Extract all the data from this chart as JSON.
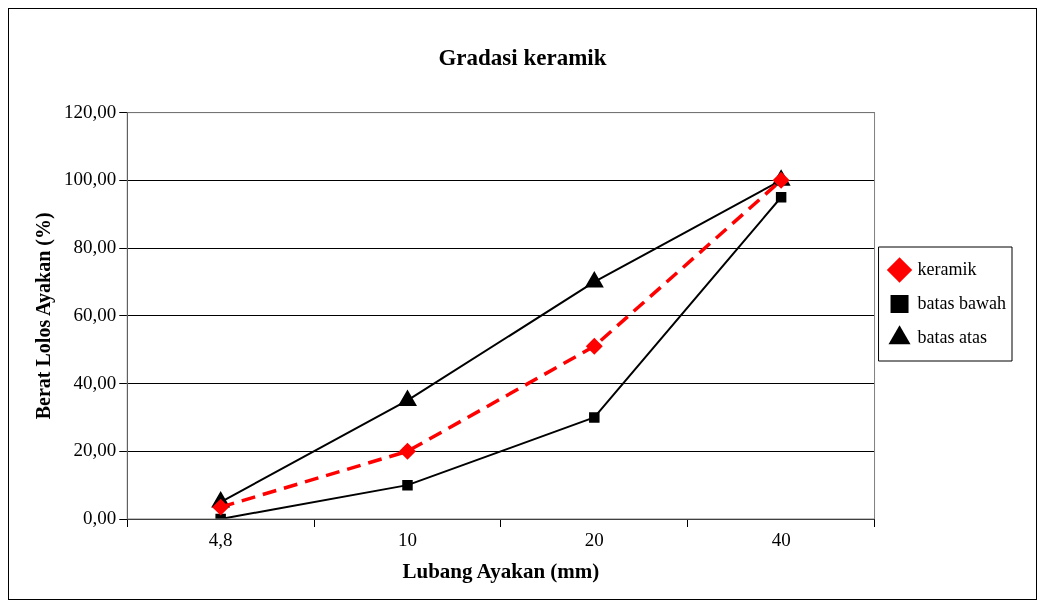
{
  "chart_data": {
    "type": "line",
    "title": "Gradasi keramik",
    "xlabel": "Lubang Ayakan (mm)",
    "ylabel": "Berat Lolos Ayakan (%)",
    "categories": [
      "4,8",
      "10",
      "20",
      "40"
    ],
    "series": [
      {
        "name": "keramik",
        "color": "#ff0000",
        "values": [
          3.5,
          20,
          51,
          100
        ],
        "marker": "diamond",
        "line_style": "dashed"
      },
      {
        "name": "batas bawah",
        "color": "#000000",
        "values": [
          0,
          10,
          30,
          95
        ],
        "marker": "square",
        "line_style": "solid"
      },
      {
        "name": "batas atas",
        "color": "#000000",
        "values": [
          5,
          35,
          70,
          100
        ],
        "marker": "triangle",
        "line_style": "solid"
      }
    ],
    "ylim": [
      0,
      120
    ],
    "yticks": [
      {
        "value": 0,
        "label": "0,00"
      },
      {
        "value": 20,
        "label": "20,00"
      },
      {
        "value": 40,
        "label": "40,00"
      },
      {
        "value": 60,
        "label": "60,00"
      },
      {
        "value": 80,
        "label": "80,00"
      },
      {
        "value": 100,
        "label": "100,00"
      },
      {
        "value": 120,
        "label": "120,00"
      }
    ],
    "grid": "y",
    "legend": "right"
  }
}
